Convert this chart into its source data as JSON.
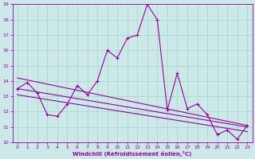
{
  "xlabel": "Windchill (Refroidissement éolien,°C)",
  "xlim": [
    -0.5,
    23.5
  ],
  "ylim": [
    10,
    19
  ],
  "xticks": [
    0,
    1,
    2,
    3,
    4,
    5,
    6,
    7,
    8,
    9,
    10,
    11,
    12,
    13,
    14,
    15,
    16,
    17,
    18,
    19,
    20,
    21,
    22,
    23
  ],
  "yticks": [
    10,
    11,
    12,
    13,
    14,
    15,
    16,
    17,
    18,
    19
  ],
  "background_color": "#cce8e8",
  "grid_color": "#aad8d0",
  "line_color": "#990099",
  "windchill_x": [
    0,
    1,
    2,
    3,
    4,
    5,
    6,
    7,
    8,
    9,
    10,
    11,
    12,
    13,
    14,
    15,
    16,
    17,
    18,
    19,
    20,
    21,
    22,
    23
  ],
  "windchill_y": [
    13.5,
    13.9,
    13.2,
    11.8,
    11.7,
    12.5,
    13.7,
    13.1,
    14.0,
    16.0,
    15.5,
    16.8,
    17.0,
    19.0,
    18.0,
    12.1,
    14.5,
    12.2,
    12.5,
    11.8,
    10.5,
    10.8,
    10.2,
    11.1
  ],
  "trend1_x": [
    0,
    23
  ],
  "trend1_y": [
    14.2,
    11.1
  ],
  "trend2_x": [
    0,
    23
  ],
  "trend2_y": [
    13.5,
    11.0
  ],
  "trend3_x": [
    0,
    23
  ],
  "trend3_y": [
    13.1,
    10.7
  ]
}
